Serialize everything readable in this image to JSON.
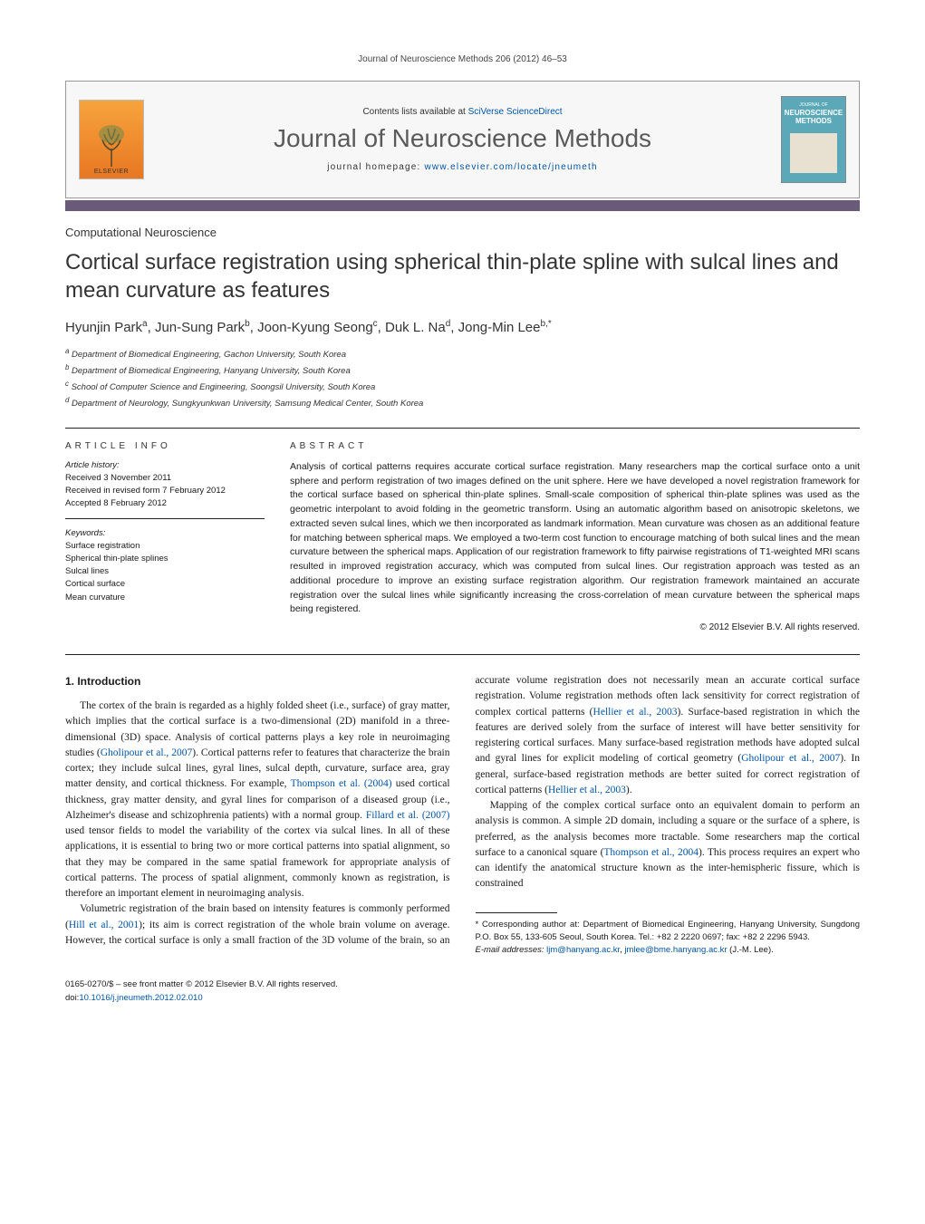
{
  "running_head": "Journal of Neuroscience Methods 206 (2012) 46–53",
  "banner": {
    "contents_prefix": "Contents lists available at ",
    "contents_link": "SciVerse ScienceDirect",
    "journal_name": "Journal of Neuroscience Methods",
    "homepage_prefix": "journal homepage: ",
    "homepage_link": "www.elsevier.com/locate/jneumeth",
    "publisher_label": "ELSEVIER",
    "cover_top": "JOURNAL OF",
    "cover_main1": "NEUROSCIENCE",
    "cover_main2": "METHODS"
  },
  "section_label": "Computational Neuroscience",
  "title": "Cortical surface registration using spherical thin-plate spline with sulcal lines and mean curvature as features",
  "authors_html": "Hyunjin Park<sup>a</sup>, Jun-Sung Park<sup>b</sup>, Joon-Kyung Seong<sup>c</sup>, Duk L. Na<sup>d</sup>, Jong-Min Lee<sup>b,*</sup>",
  "affiliations": [
    "a Department of Biomedical Engineering, Gachon University, South Korea",
    "b Department of Biomedical Engineering, Hanyang University, South Korea",
    "c School of Computer Science and Engineering, Soongsil University, South Korea",
    "d Department of Neurology, Sungkyunkwan University, Samsung Medical Center, South Korea"
  ],
  "article_info": {
    "head": "ARTICLE INFO",
    "history_label": "Article history:",
    "history_lines": [
      "Received 3 November 2011",
      "Received in revised form 7 February 2012",
      "Accepted 8 February 2012"
    ],
    "keywords_label": "Keywords:",
    "keywords": [
      "Surface registration",
      "Spherical thin-plate splines",
      "Sulcal lines",
      "Cortical surface",
      "Mean curvature"
    ]
  },
  "abstract": {
    "head": "ABSTRACT",
    "text": "Analysis of cortical patterns requires accurate cortical surface registration. Many researchers map the cortical surface onto a unit sphere and perform registration of two images defined on the unit sphere. Here we have developed a novel registration framework for the cortical surface based on spherical thin-plate splines. Small-scale composition of spherical thin-plate splines was used as the geometric interpolant to avoid folding in the geometric transform. Using an automatic algorithm based on anisotropic skeletons, we extracted seven sulcal lines, which we then incorporated as landmark information. Mean curvature was chosen as an additional feature for matching between spherical maps. We employed a two-term cost function to encourage matching of both sulcal lines and the mean curvature between the spherical maps. Application of our registration framework to fifty pairwise registrations of T1-weighted MRI scans resulted in improved registration accuracy, which was computed from sulcal lines. Our registration approach was tested as an additional procedure to improve an existing surface registration algorithm. Our registration framework maintained an accurate registration over the sulcal lines while significantly increasing the cross-correlation of mean curvature between the spherical maps being registered.",
    "copyright": "© 2012 Elsevier B.V. All rights reserved."
  },
  "body": {
    "heading": "1. Introduction",
    "p1_pre": "The cortex of the brain is regarded as a highly folded sheet (i.e., surface) of gray matter, which implies that the cortical surface is a two-dimensional (2D) manifold in a three-dimensional (3D) space. Analysis of cortical patterns plays a key role in neuroimaging studies (",
    "p1_cite1": "Gholipour et al., 2007",
    "p1_mid1": "). Cortical patterns refer to features that characterize the brain cortex; they include sulcal lines, gyral lines, sulcal depth, curvature, surface area, gray matter density, and cortical thickness. For example, ",
    "p1_cite2": "Thompson et al. (2004)",
    "p1_mid2": " used cortical thickness, gray matter density, and gyral lines for comparison of a diseased group (i.e., Alzheimer's disease and schizophrenia patients) with a normal group. ",
    "p1_cite3": "Fillard et al. (2007)",
    "p1_post": " used tensor fields to model the variability of the cortex via sulcal lines. In all of these applications, it is essential to bring two or more cortical patterns into spatial alignment, so that they may be compared in the same spatial framework for appropriate analysis of cortical patterns. The process of spatial alignment, commonly known as registration, is therefore an important element in neuroimaging analysis.",
    "p2_pre": "Volumetric registration of the brain based on intensity features is commonly performed (",
    "p2_cite1": "Hill et al., 2001",
    "p2_mid1": "); its aim is correct registration of the whole brain volume on average. However, the cortical surface is only a small fraction of the 3D volume of the brain, so an accurate volume registration does not necessarily mean an accurate cortical surface registration. Volume registration methods often lack sensitivity for correct registration of complex cortical patterns (",
    "p2_cite2": "Hellier et al., 2003",
    "p2_mid2": "). Surface-based registration in which the features are derived solely from the surface of interest will have better sensitivity for registering cortical surfaces. Many surface-based registration methods have adopted sulcal and gyral lines for explicit modeling of cortical geometry (",
    "p2_cite3": "Gholipour et al., 2007",
    "p2_mid3": "). In general, surface-based registration methods are better suited for correct registration of cortical patterns (",
    "p2_cite4": "Hellier et al., 2003",
    "p2_post": ").",
    "p3_pre": "Mapping of the complex cortical surface onto an equivalent domain to perform an analysis is common. A simple 2D domain, including a square or the surface of a sphere, is preferred, as the analysis becomes more tractable. Some researchers map the cortical surface to a canonical square (",
    "p3_cite1": "Thompson et al., 2004",
    "p3_post": "). This process requires an expert who can identify the anatomical structure known as the inter-hemispheric fissure, which is constrained"
  },
  "footnotes": {
    "corr_label": "* Corresponding author at: Department of Biomedical Engineering, Hanyang University, Sungdong P.O. Box 55, 133-605 Seoul, South Korea. Tel.: +82 2 2220 0697; fax: +82 2 2296 5943.",
    "email_label": "E-mail addresses: ",
    "email1": "ljm@hanyang.ac.kr",
    "email_sep": ", ",
    "email2": "jmlee@bme.hanyang.ac.kr",
    "email_tail": " (J.-M. Lee)."
  },
  "footer": {
    "line1": "0165-0270/$ – see front matter © 2012 Elsevier B.V. All rights reserved.",
    "doi_prefix": "doi:",
    "doi": "10.1016/j.jneumeth.2012.02.010"
  },
  "colors": {
    "accent_bar": "#6a5a7a",
    "link": "#0055aa",
    "elsevier_orange": "#e87722",
    "cover_teal": "#5aa8b8"
  }
}
